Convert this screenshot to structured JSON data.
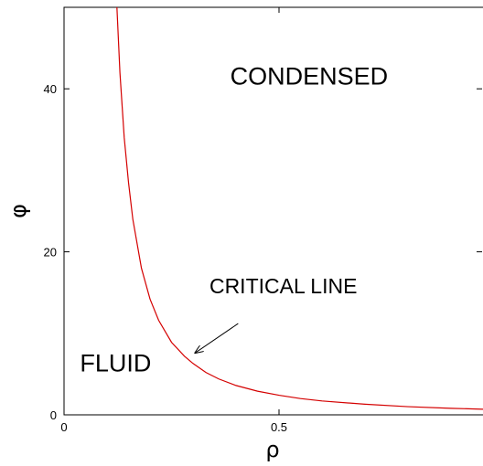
{
  "chart_data": {
    "type": "line",
    "xlabel": "ρ",
    "ylabel": "φ",
    "xlim": [
      0,
      1
    ],
    "ylim": [
      0,
      50
    ],
    "xticks": [
      {
        "value": 0,
        "label": "0"
      },
      {
        "value": 0.5,
        "label": "0.5"
      }
    ],
    "yticks": [
      {
        "value": 0,
        "label": "0"
      },
      {
        "value": 20,
        "label": "20"
      },
      {
        "value": 40,
        "label": "40"
      }
    ],
    "grid": false,
    "series": [
      {
        "color": "#d40000",
        "x": [
          0.123,
          0.13,
          0.14,
          0.15,
          0.16,
          0.18,
          0.2,
          0.22,
          0.25,
          0.28,
          0.3,
          0.33,
          0.36,
          0.4,
          0.45,
          0.5,
          0.55,
          0.6,
          0.7,
          0.8,
          0.9,
          1.0
        ],
        "y": [
          50.0,
          42.0,
          34.0,
          28.5,
          24.0,
          18.0,
          14.2,
          11.6,
          8.9,
          7.2,
          6.3,
          5.2,
          4.4,
          3.6,
          2.9,
          2.4,
          2.0,
          1.7,
          1.3,
          1.0,
          0.8,
          0.65
        ]
      }
    ],
    "annotations": {
      "condensed": {
        "text": "CONDENSED",
        "x": 0.57,
        "y": 40.5
      },
      "fluid": {
        "text": "FLUID",
        "x": 0.12,
        "y": 5.3
      },
      "critical": {
        "text": "CRITICAL LINE",
        "x": 0.51,
        "y": 14.9,
        "arrow_from": [
          0.405,
          11.2
        ],
        "arrow_to": [
          0.305,
          7.6
        ]
      }
    }
  }
}
